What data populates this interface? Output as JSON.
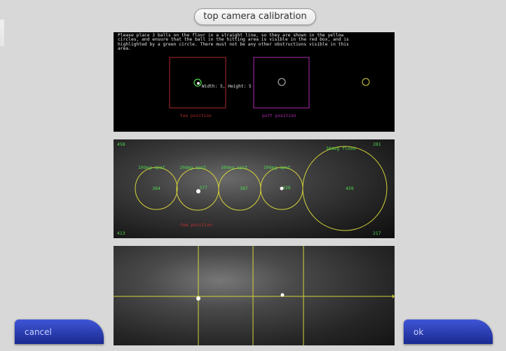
{
  "title": "top camera calibration",
  "instructions": "Please place 3 balls on the floor in a straight line, so they are shown in the yellow circles, and ensure that the ball in the hitting area is visible in the red box, and is highlighted by a green circle. There must not be any other obstructions visible in this area.",
  "top_panel": {
    "ball_readout": "Width: 5, Height: 5",
    "tee_label": "tee position",
    "putt_label": "putt position"
  },
  "mid_panel": {
    "corner_top_left": "458",
    "corner_top_right": "281",
    "corner_bottom_left": "413",
    "corner_bottom_right": "217",
    "tee_label": "tee position",
    "spots": [
      {
        "label": "10deg spot",
        "value": "364"
      },
      {
        "label": "10deg spot",
        "value": "377"
      },
      {
        "label": "10deg spot",
        "value": "387"
      },
      {
        "label": "10deg spot",
        "value": "426"
      },
      {
        "label": "30deg flood",
        "value": "459"
      }
    ]
  },
  "buttons": {
    "cancel": "cancel",
    "ok": "ok"
  },
  "colors": {
    "yellow": "#d6d33a",
    "green": "#4fd84f",
    "red_box": "#b02a2a",
    "magenta_box": "#b02ab0",
    "button_blue": "#2438b4"
  }
}
